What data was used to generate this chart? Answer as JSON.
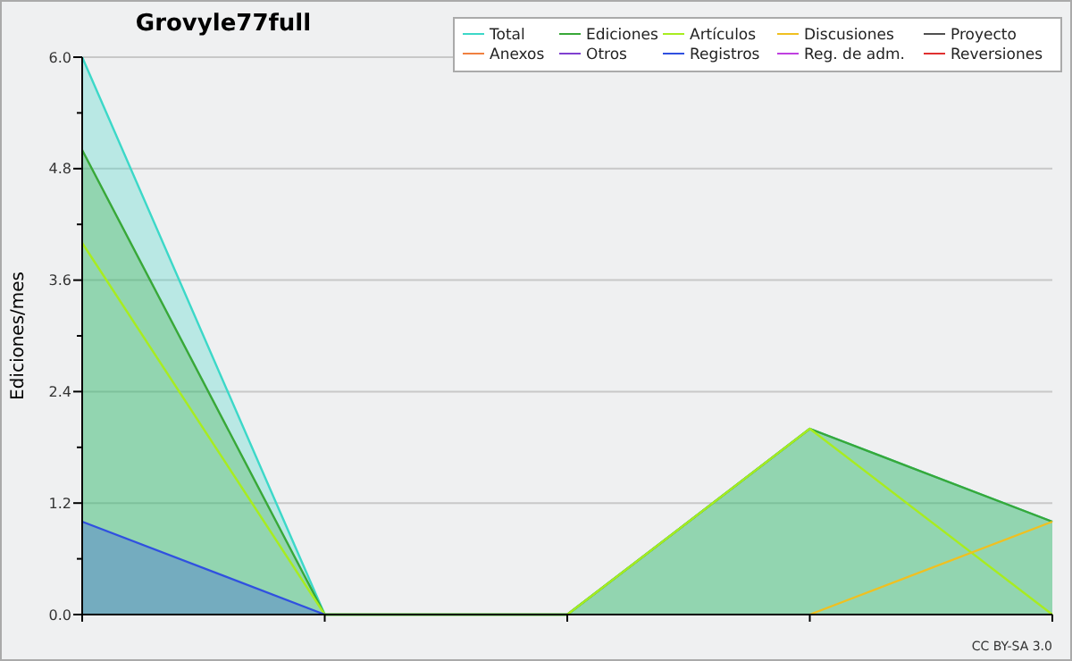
{
  "chart_data": {
    "type": "area",
    "title": "Grovyle77full",
    "ylabel": "Ediciones/mes",
    "categories": [
      null,
      null,
      null,
      null,
      null
    ],
    "series": [
      {
        "name": "Total",
        "color": "#3cd8c8",
        "values": [
          6,
          0,
          0,
          2,
          1
        ]
      },
      {
        "name": "Ediciones",
        "color": "#38a838",
        "values": [
          5,
          0,
          0,
          2,
          1
        ]
      },
      {
        "name": "Artículos",
        "color": "#a8ec20",
        "type": "line",
        "values": [
          4,
          0,
          0,
          2,
          0
        ]
      },
      {
        "name": "Discusiones",
        "color": "#f0c020",
        "type": "line",
        "values": [
          null,
          null,
          null,
          0,
          1
        ]
      },
      {
        "name": "Proyecto",
        "color": "#505050",
        "type": "line",
        "values": [
          null,
          null,
          null,
          null,
          null
        ]
      },
      {
        "name": "Anexos",
        "color": "#f08040",
        "type": "line",
        "values": [
          null,
          null,
          null,
          null,
          null
        ]
      },
      {
        "name": "Otros",
        "color": "#8040d0",
        "type": "line",
        "values": [
          null,
          null,
          null,
          null,
          null
        ]
      },
      {
        "name": "Registros",
        "color": "#3050e0",
        "values": [
          1,
          0,
          null,
          null,
          null
        ]
      },
      {
        "name": "Reg. de adm.",
        "color": "#c040e0",
        "type": "line",
        "values": [
          null,
          null,
          null,
          null,
          null
        ]
      },
      {
        "name": "Reversiones",
        "color": "#e03030",
        "type": "line",
        "values": [
          null,
          null,
          null,
          null,
          null
        ]
      }
    ],
    "ylim": [
      0,
      6
    ],
    "yticks": [
      {
        "value": 0,
        "label": "0.0"
      },
      {
        "value": 0.6,
        "label": null
      },
      {
        "value": 1.2,
        "label": "1.2"
      },
      {
        "value": 1.8,
        "label": null
      },
      {
        "value": 2.4,
        "label": "2.4"
      },
      {
        "value": 3,
        "label": null
      },
      {
        "value": 3.6,
        "label": "3.6"
      },
      {
        "value": 4.2,
        "label": null
      },
      {
        "value": 4.8,
        "label": "4.8"
      },
      {
        "value": 5.4,
        "label": null
      },
      {
        "value": 6,
        "label": "6.0"
      }
    ],
    "grid": "y",
    "legend": "top right",
    "annotations": [
      "CC BY-SA 3.0"
    ]
  }
}
